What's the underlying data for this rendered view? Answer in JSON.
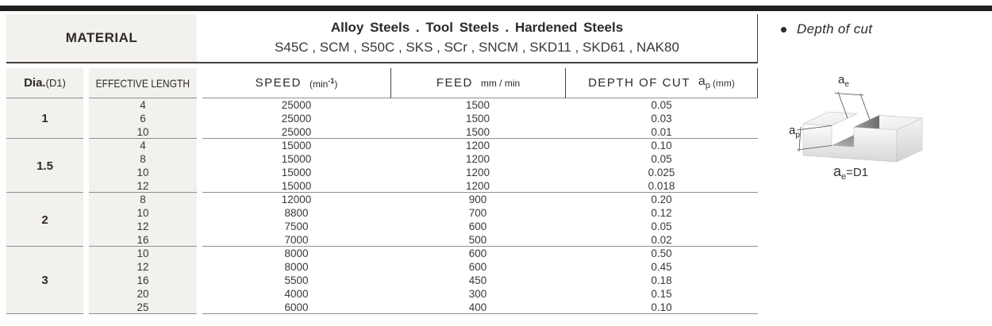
{
  "material_row": {
    "label": "MATERIAL",
    "title": "Alloy Steels . Tool Steels . Hardened Steels",
    "subtitle": "S45C , SCM , S50C , SKS , SCr , SNCM , SKD11 , SKD61 , NAK80"
  },
  "columns": {
    "dia": {
      "bold": "Dia.",
      "paren": "(D1)"
    },
    "effective_length": "EFFECTIVE LENGTH",
    "speed": {
      "label": "SPEED",
      "unit_open": "(min",
      "unit_sup": "-1",
      "unit_close": ")"
    },
    "feed": {
      "label": "FEED",
      "unit": "mm / min"
    },
    "depth": {
      "label": "DEPTH OF CUT",
      "sym_main": "a",
      "sym_sub": "p",
      "unit": "(mm)"
    }
  },
  "table": {
    "groups": [
      {
        "dia": "1",
        "rows": [
          {
            "length": "4",
            "speed": "25000",
            "feed": "1500",
            "depth": "0.05"
          },
          {
            "length": "6",
            "speed": "25000",
            "feed": "1500",
            "depth": "0.03"
          },
          {
            "length": "10",
            "speed": "25000",
            "feed": "1500",
            "depth": "0.01"
          }
        ]
      },
      {
        "dia": "1.5",
        "rows": [
          {
            "length": "4",
            "speed": "15000",
            "feed": "1200",
            "depth": "0.10"
          },
          {
            "length": "8",
            "speed": "15000",
            "feed": "1200",
            "depth": "0.05"
          },
          {
            "length": "10",
            "speed": "15000",
            "feed": "1200",
            "depth": "0.025"
          },
          {
            "length": "12",
            "speed": "15000",
            "feed": "1200",
            "depth": "0.018"
          }
        ]
      },
      {
        "dia": "2",
        "rows": [
          {
            "length": "8",
            "speed": "12000",
            "feed": "900",
            "depth": "0.20"
          },
          {
            "length": "10",
            "speed": "8800",
            "feed": "700",
            "depth": "0.12"
          },
          {
            "length": "12",
            "speed": "7500",
            "feed": "600",
            "depth": "0.05"
          },
          {
            "length": "16",
            "speed": "7000",
            "feed": "500",
            "depth": "0.02"
          }
        ]
      },
      {
        "dia": "3",
        "rows": [
          {
            "length": "10",
            "speed": "8000",
            "feed": "600",
            "depth": "0.50"
          },
          {
            "length": "12",
            "speed": "8000",
            "feed": "600",
            "depth": "0.45"
          },
          {
            "length": "16",
            "speed": "5500",
            "feed": "450",
            "depth": "0.18"
          },
          {
            "length": "20",
            "speed": "4000",
            "feed": "300",
            "depth": "0.15"
          },
          {
            "length": "25",
            "speed": "6000",
            "feed": "400",
            "depth": "0.10"
          }
        ]
      }
    ]
  },
  "side": {
    "heading": "Depth of cut",
    "label_ae": {
      "main": "a",
      "sub": "e"
    },
    "label_ap": {
      "main": "a",
      "sub": "p"
    },
    "formula": {
      "main": "a",
      "sub": "e",
      "rest": "=D1"
    }
  },
  "colors": {
    "top_bar": "#221e1b",
    "cell_bg": "#f2f1ee",
    "line_dark": "#44403d",
    "line_gray": "#8f8f8f",
    "text_dark": "#2d2a28"
  }
}
